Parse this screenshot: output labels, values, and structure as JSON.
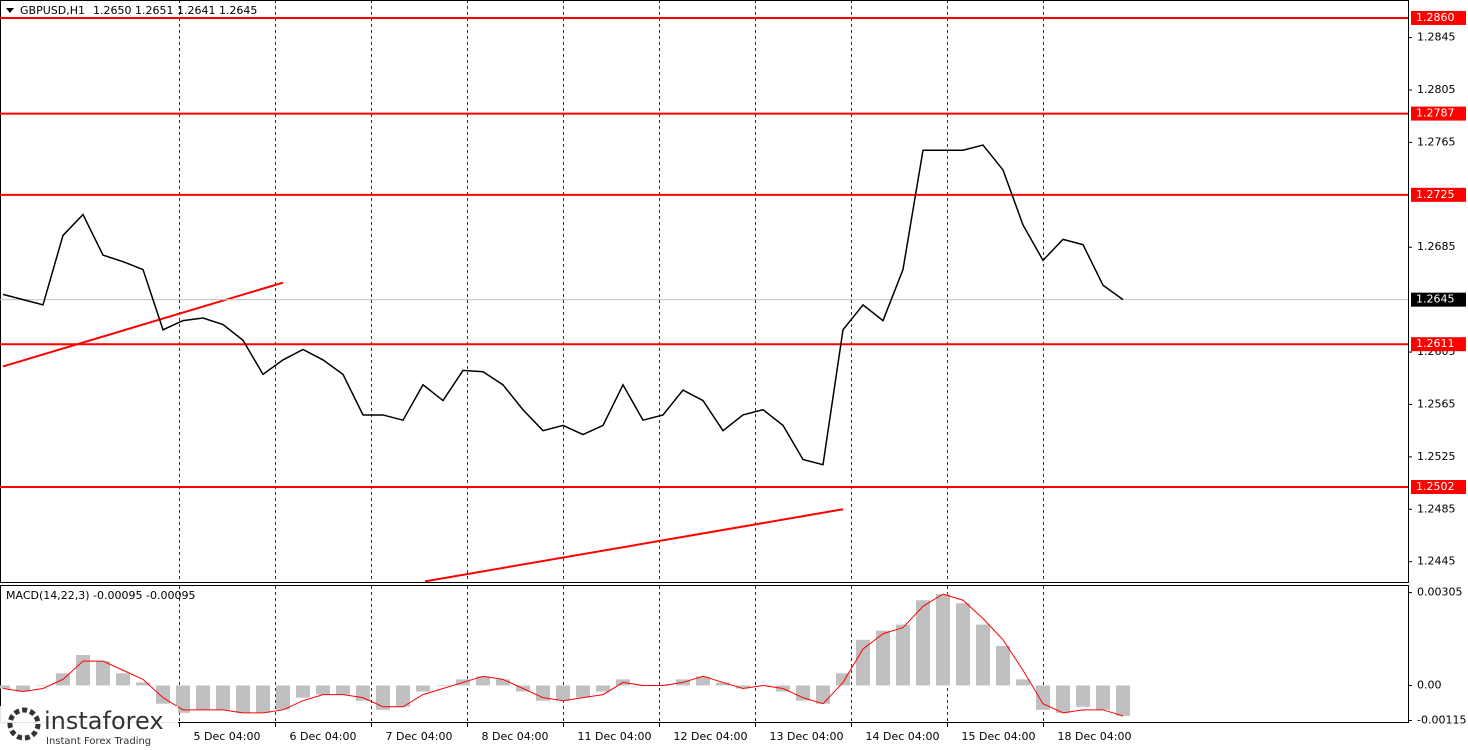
{
  "chart_data": [
    {
      "type": "line",
      "title": "GBPUSD,H1",
      "subtitle": "1.2650 1.2651 1.2641 1.2645",
      "x": [
        0,
        5,
        10,
        15,
        20,
        25,
        30,
        35,
        40,
        45,
        50,
        55,
        60,
        65,
        70,
        75,
        80,
        85,
        90,
        95,
        100,
        105,
        110,
        115,
        120,
        125,
        130,
        135,
        140,
        145,
        150,
        155,
        160,
        165,
        170,
        175,
        180,
        185,
        190,
        195,
        200,
        205,
        210,
        215,
        220,
        225,
        230,
        235,
        240,
        245,
        250,
        255,
        260,
        265,
        270,
        275,
        280
      ],
      "values": [
        1.2649,
        1.2645,
        1.2641,
        1.2694,
        1.271,
        1.2679,
        1.2674,
        1.2668,
        1.2622,
        1.2629,
        1.2631,
        1.2626,
        1.2614,
        1.2588,
        1.2599,
        1.2607,
        1.2599,
        1.2588,
        1.2557,
        1.2557,
        1.2553,
        1.258,
        1.2568,
        1.2591,
        1.259,
        1.258,
        1.2561,
        1.2545,
        1.2549,
        1.2542,
        1.2549,
        1.258,
        1.2553,
        1.2557,
        1.2576,
        1.2568,
        1.2545,
        1.2557,
        1.2561,
        1.2549,
        1.2523,
        1.2519,
        1.2622,
        1.2641,
        1.2629,
        1.2668,
        1.2759,
        1.2759,
        1.2759,
        1.2763,
        1.2744,
        1.2702,
        1.2675,
        1.2691,
        1.2687,
        1.2656,
        1.2645
      ],
      "color": "#000000",
      "xlim": [
        -0.75,
        351.25
      ],
      "ylim": [
        1.24295,
        1.28737
      ],
      "yticks": [
        1.2845,
        1.2805,
        1.2765,
        1.2685,
        1.2605,
        1.2565,
        1.2525,
        1.2485,
        1.2445
      ],
      "xticks": [
        {
          "value": 44,
          "label": "5 Dec 04:00"
        },
        {
          "value": 68,
          "label": "6 Dec 04:00"
        },
        {
          "value": 92,
          "label": "7 Dec 04:00"
        },
        {
          "value": 116,
          "label": "8 Dec 04:00"
        },
        {
          "value": 140,
          "label": "11 Dec 04:00"
        },
        {
          "value": 164,
          "label": "12 Dec 04:00"
        },
        {
          "value": 188,
          "label": "13 Dec 04:00"
        },
        {
          "value": 212,
          "label": "14 Dec 04:00"
        },
        {
          "value": 236,
          "label": "15 Dec 04:00"
        },
        {
          "value": 260,
          "label": "18 Dec 04:00"
        }
      ],
      "grid": true,
      "levels": [
        {
          "value": 1.286,
          "label": "1.2860"
        },
        1.2787,
        1.2725,
        1.2611,
        1.2502
      ],
      "level_color": "#ff0000",
      "current_price": 1.2645,
      "trendlines": [
        {
          "x": [
            0,
            70
          ],
          "values": [
            1.2594,
            1.2658
          ]
        },
        {
          "x": [
            105.5,
            210
          ],
          "values": [
            1.243,
            1.2485
          ]
        }
      ],
      "watermark": {
        "name": "instaforex",
        "tagline": "Instant Forex Trading"
      }
    },
    {
      "type": "bar",
      "title": "MACD(14,22,3) -0.00095 -0.00095",
      "x": [
        0,
        5,
        10,
        15,
        20,
        25,
        30,
        35,
        40,
        45,
        50,
        55,
        60,
        65,
        70,
        75,
        80,
        85,
        90,
        95,
        100,
        105,
        110,
        115,
        120,
        125,
        130,
        135,
        140,
        145,
        150,
        155,
        160,
        165,
        170,
        175,
        180,
        185,
        190,
        195,
        200,
        205,
        210,
        215,
        220,
        225,
        230,
        235,
        240,
        245,
        250,
        255,
        260,
        265,
        270,
        275,
        280
      ],
      "values": [
        -0.0001,
        -0.0002,
        0.0,
        0.0004,
        0.001,
        0.0008,
        0.0004,
        0.0001,
        -0.0006,
        -0.0009,
        -0.0008,
        -0.0008,
        -0.0009,
        -0.0009,
        -0.0008,
        -0.0004,
        -0.0003,
        -0.0003,
        -0.0005,
        -0.0008,
        -0.0007,
        -0.0002,
        0.0,
        0.0002,
        0.0003,
        0.0002,
        -0.0002,
        -0.0005,
        -0.0005,
        -0.0004,
        -0.0002,
        0.0002,
        0.0,
        0.0,
        0.0002,
        0.0003,
        0.0001,
        -0.0001,
        0.0,
        -0.0002,
        -0.0005,
        -0.0006,
        0.0004,
        0.0015,
        0.0018,
        0.002,
        0.0028,
        0.003,
        0.0027,
        0.002,
        0.0013,
        0.0002,
        -0.0008,
        -0.0009,
        -0.0007,
        -0.0008,
        -0.001
      ],
      "color": "#c0c0c0",
      "signal": {
        "color": "#ff0000",
        "values": [
          -0.0001,
          -0.0002,
          -0.0001,
          0.0002,
          0.0008,
          0.0008,
          0.0005,
          0.0002,
          -0.0004,
          -0.0008,
          -0.0008,
          -0.0008,
          -0.0009,
          -0.0009,
          -0.0008,
          -0.0005,
          -0.0003,
          -0.0003,
          -0.0004,
          -0.0007,
          -0.0007,
          -0.0003,
          -0.0001,
          0.0001,
          0.0003,
          0.0002,
          -0.0001,
          -0.0004,
          -0.0005,
          -0.0004,
          -0.0003,
          0.0001,
          0.0,
          0.0,
          0.0001,
          0.0003,
          0.0001,
          -0.0001,
          0.0,
          -0.0001,
          -0.0004,
          -0.0006,
          0.0001,
          0.0012,
          0.0017,
          0.0019,
          0.0026,
          0.003,
          0.0028,
          0.0022,
          0.0015,
          0.0005,
          -0.0006,
          -0.0009,
          -0.0008,
          -0.0008,
          -0.001
        ]
      },
      "ylim": [
        -0.0012,
        0.0033
      ],
      "yticks": [
        0.00305,
        {
          "value": 0,
          "label": "0.00"
        },
        -0.00115
      ]
    }
  ]
}
